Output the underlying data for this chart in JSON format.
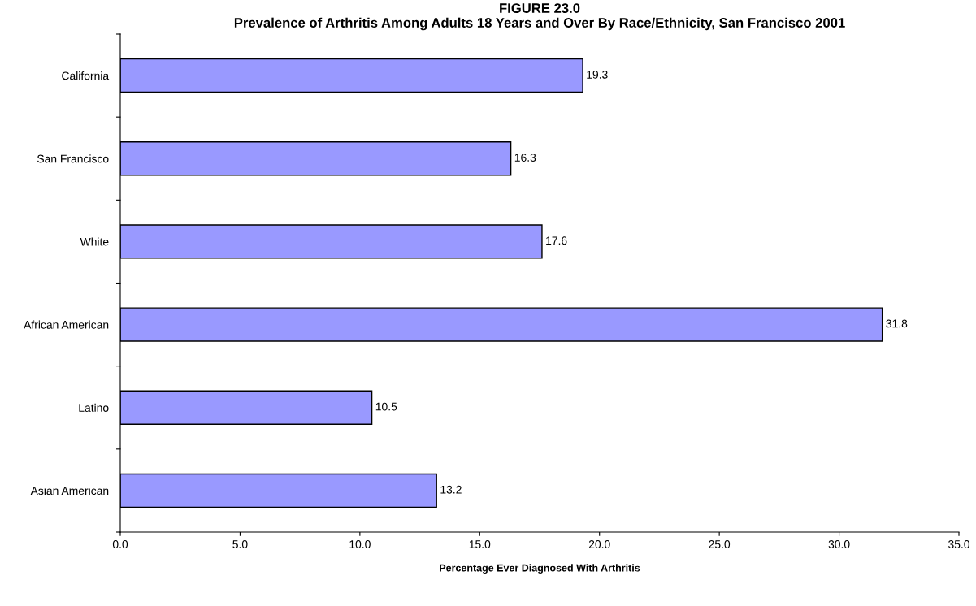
{
  "chart_data": {
    "type": "bar",
    "orientation": "horizontal",
    "title": "FIGURE 23.0\nPrevalence of Arthritis Among Adults 18 Years and Over By Race/Ethnicity, San Francisco 2001",
    "xlabel": "Percentage Ever Diagnosed With Arthritis",
    "categories": [
      "California",
      "San Francisco",
      "White",
      "African American",
      "Latino",
      "Asian American"
    ],
    "values": [
      19.3,
      16.3,
      17.6,
      31.8,
      10.5,
      13.2
    ],
    "color": "#9999ff",
    "data_labels": true,
    "xlim": [
      0,
      35
    ],
    "xticks": [
      {
        "value": 0,
        "label": "0.0"
      },
      {
        "value": 5,
        "label": "5.0"
      },
      {
        "value": 10,
        "label": "10.0"
      },
      {
        "value": 15,
        "label": "15.0"
      },
      {
        "value": 20,
        "label": "20.0"
      },
      {
        "value": 25,
        "label": "25.0"
      },
      {
        "value": 30,
        "label": "30.0"
      },
      {
        "value": 35,
        "label": "35.0"
      }
    ],
    "grid": false,
    "legend": false
  }
}
